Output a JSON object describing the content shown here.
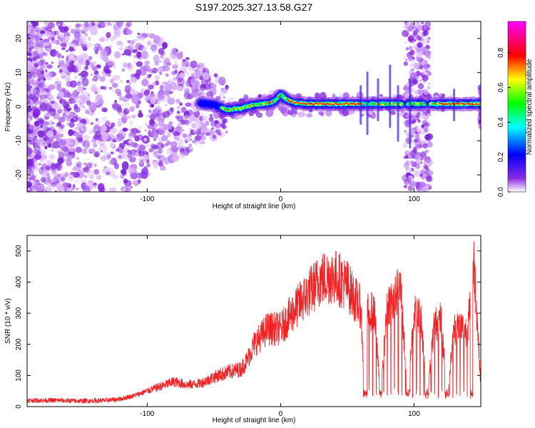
{
  "chart_data": [
    {
      "type": "heatmap",
      "title": "S197.2025.327.13.58.G27",
      "xlabel": "Height of straight line (km)",
      "ylabel": "Frequency (Hz)",
      "xlim": [
        -190,
        150
      ],
      "ylim": [
        -25,
        25
      ],
      "xticks": [
        -100,
        0,
        100
      ],
      "yticks": [
        -20,
        -10,
        0,
        10,
        20
      ],
      "colorbar": {
        "label": "Normalized spectral amplitude",
        "range": [
          0.0,
          0.98
        ],
        "ticks": [
          0.0,
          0.2,
          0.4,
          0.6,
          0.8
        ],
        "colormap": [
          "#ffffff",
          "#8a2be2",
          "#0000ff",
          "#00ffff",
          "#00ff00",
          "#ffff00",
          "#ff0000",
          "#ff00ff"
        ]
      },
      "ridge": {
        "description": "dominant spectral line near 0-4 Hz",
        "x": [
          -60,
          -50,
          -40,
          -30,
          -20,
          -10,
          -5,
          0,
          5,
          10,
          20,
          40,
          60,
          80,
          95,
          110,
          130,
          150
        ],
        "y": [
          1,
          0.5,
          -1,
          -0.5,
          0.5,
          1,
          1.5,
          3.5,
          2,
          1.2,
          0.8,
          0.8,
          0.8,
          0.8,
          0.8,
          0.8,
          0.8,
          0.8
        ]
      }
    },
    {
      "type": "line",
      "xlabel": "Height of straight line (km)",
      "ylabel": "SNR (10 * v/v)",
      "xlim": [
        -190,
        150
      ],
      "ylim": [
        0,
        550
      ],
      "xticks": [
        -100,
        0,
        100
      ],
      "yticks": [
        0,
        100,
        200,
        300,
        400,
        500
      ],
      "color": "#ee2222",
      "series": [
        {
          "name": "SNR",
          "x": [
            -190,
            -170,
            -150,
            -130,
            -120,
            -110,
            -100,
            -90,
            -80,
            -70,
            -60,
            -50,
            -40,
            -30,
            -25,
            -20,
            -10,
            0,
            10,
            20,
            30,
            40,
            50,
            55,
            60,
            63,
            65,
            70,
            75,
            80,
            85,
            90,
            95,
            100,
            105,
            110,
            115,
            120,
            125,
            130,
            135,
            140,
            145,
            150
          ],
          "y": [
            20,
            20,
            18,
            20,
            25,
            35,
            50,
            65,
            80,
            70,
            75,
            95,
            110,
            120,
            150,
            200,
            250,
            250,
            310,
            360,
            410,
            420,
            390,
            350,
            320,
            40,
            300,
            310,
            40,
            330,
            350,
            380,
            40,
            300,
            290,
            40,
            260,
            280,
            40,
            250,
            260,
            240,
            460,
            70
          ]
        }
      ]
    }
  ]
}
